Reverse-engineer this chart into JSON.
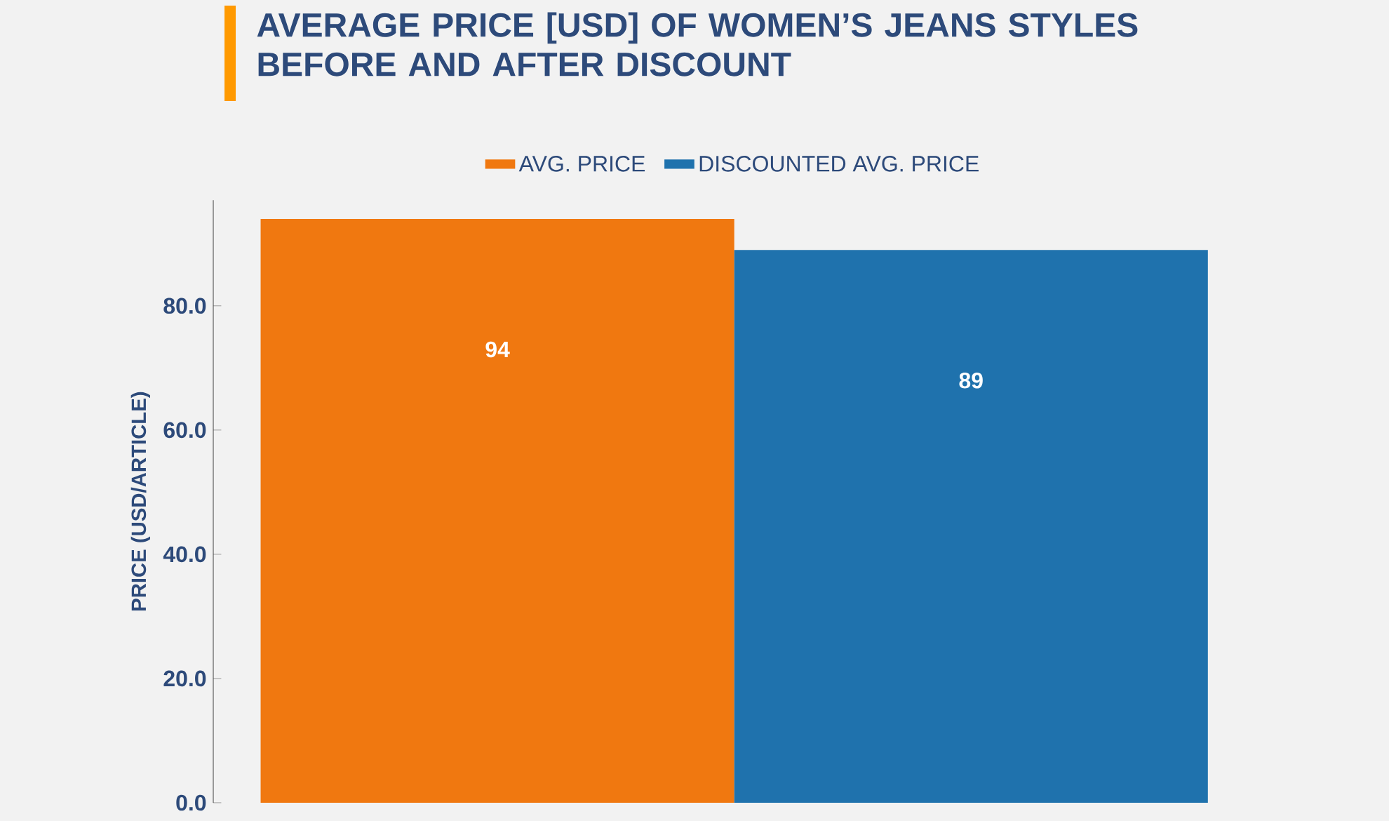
{
  "chart_data": {
    "type": "bar",
    "title": "AVERAGE PRICE [USD] OF WOMEN’S JEANS STYLES BEFORE AND AFTER DISCOUNT",
    "ylabel": "PRICE (USD/ARTICLE)",
    "categories": [
      null
    ],
    "series": [
      {
        "name": "AVG. PRICE",
        "color": "#f07810",
        "values": [
          94
        ]
      },
      {
        "name": "DISCOUNTED AVG. PRICE",
        "color": "#1f72ad",
        "values": [
          89
        ]
      }
    ],
    "ylim": [
      0,
      97
    ],
    "yticks": [
      {
        "value": 0,
        "label": "0.0"
      },
      {
        "value": 20,
        "label": "20.0"
      },
      {
        "value": 40,
        "label": "40.0"
      },
      {
        "value": 60,
        "label": "60.0"
      },
      {
        "value": 80,
        "label": "80.0"
      }
    ],
    "data_labels": true,
    "legend": "top"
  }
}
